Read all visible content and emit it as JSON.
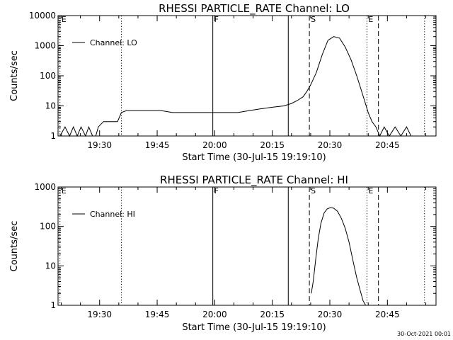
{
  "footer": {
    "timestamp": "30-Oct-2021 00:01"
  },
  "chart_data": [
    {
      "type": "line",
      "title": "RHESSI PARTICLE_RATE Channel: LO",
      "xlabel": "Start Time (30-Jul-15 19:19:10)",
      "ylabel": "Counts/sec",
      "yscale": "log",
      "ylim": [
        1,
        10000
      ],
      "xlim": [
        "19:19:10",
        "20:57:40"
      ],
      "x_ticks": [
        "19:30",
        "19:45",
        "20:00",
        "20:15",
        "20:30",
        "20:45"
      ],
      "y_ticks": [
        "1",
        "10",
        "100",
        "1000",
        "10000"
      ],
      "legend": {
        "position": "top-left",
        "entries": [
          "Channel: LO"
        ]
      },
      "markers": [
        {
          "label": "E",
          "time": "19:19:40",
          "style": "dotted"
        },
        {
          "label": "",
          "time": "19:35:40",
          "style": "dotted"
        },
        {
          "label": "F",
          "time": "19:59:30",
          "style": "solid"
        },
        {
          "label": "",
          "time": "20:19:10",
          "style": "solid"
        },
        {
          "label": "S",
          "time": "20:24:40",
          "style": "dashed"
        },
        {
          "label": "E",
          "time": "20:39:40",
          "style": "dotted"
        },
        {
          "label": "",
          "time": "20:42:40",
          "style": "dashed"
        },
        {
          "label": "",
          "time": "20:54:40",
          "style": "dotted"
        }
      ],
      "series": [
        {
          "x": [
            "19:19:40",
            "19:21:00",
            "19:22:10",
            "19:23:10",
            "19:24:10",
            "19:25:10",
            "19:26:20",
            "19:27:10",
            "19:28:10",
            "19:29:00",
            "19:29:40",
            "19:31:00",
            "19:33:00",
            "19:34:40",
            "19:35:40",
            "19:37:00",
            "19:40:00",
            "19:43:00",
            "19:46:00",
            "19:49:00",
            "19:52:00",
            "19:55:00",
            "19:58:00",
            "20:00:00",
            "20:03:00",
            "20:06:00",
            "20:09:00",
            "20:12:00",
            "20:15:00",
            "20:18:00",
            "20:20:00",
            "20:21:30",
            "20:23:00",
            "20:24:00",
            "20:25:00",
            "20:26:30",
            "20:28:00",
            "20:29:30",
            "20:31:00",
            "20:32:30",
            "20:34:00",
            "20:35:30",
            "20:37:00",
            "20:38:30",
            "20:40:00",
            "20:41:00",
            "20:42:00",
            "20:43:00",
            "20:44:10",
            "20:45:30",
            "20:47:00",
            "20:48:30",
            "20:50:00",
            "20:51:10"
          ],
          "y": [
            1,
            2,
            1,
            2,
            1,
            2,
            1,
            2,
            1,
            1,
            2,
            3,
            3,
            3,
            6,
            7,
            7,
            7,
            7,
            6,
            6,
            6,
            6,
            6,
            6,
            6,
            7,
            8,
            9,
            10,
            12,
            15,
            20,
            30,
            50,
            130,
            500,
            1500,
            2000,
            1800,
            900,
            350,
            100,
            25,
            6,
            3,
            2,
            1,
            2,
            1,
            2,
            1,
            2,
            1
          ]
        }
      ]
    },
    {
      "type": "line",
      "title": "RHESSI PARTICLE_RATE Channel: HI",
      "xlabel": "Start Time (30-Jul-15 19:19:10)",
      "ylabel": "Counts/sec",
      "yscale": "log",
      "ylim": [
        1,
        1000
      ],
      "xlim": [
        "19:19:10",
        "20:57:40"
      ],
      "x_ticks": [
        "19:30",
        "19:45",
        "20:00",
        "20:15",
        "20:30",
        "20:45"
      ],
      "y_ticks": [
        "1",
        "10",
        "100",
        "1000"
      ],
      "legend": {
        "position": "top-left",
        "entries": [
          "Channel: HI"
        ]
      },
      "markers": [
        {
          "label": "E",
          "time": "19:19:40",
          "style": "dotted"
        },
        {
          "label": "",
          "time": "19:35:40",
          "style": "dotted"
        },
        {
          "label": "F",
          "time": "19:59:30",
          "style": "solid"
        },
        {
          "label": "",
          "time": "20:19:10",
          "style": "solid"
        },
        {
          "label": "S",
          "time": "20:24:40",
          "style": "dashed"
        },
        {
          "label": "E",
          "time": "20:39:40",
          "style": "dotted"
        },
        {
          "label": "",
          "time": "20:42:40",
          "style": "dashed"
        },
        {
          "label": "",
          "time": "20:54:40",
          "style": "dotted"
        }
      ],
      "series": [
        {
          "x": [
            "20:25:10",
            "20:25:40",
            "20:26:20",
            "20:27:00",
            "20:27:40",
            "20:28:30",
            "20:29:20",
            "20:30:10",
            "20:31:00",
            "20:32:00",
            "20:33:00",
            "20:34:00",
            "20:35:00",
            "20:36:00",
            "20:37:00",
            "20:38:00",
            "20:38:40",
            "20:39:20"
          ],
          "y": [
            2,
            4,
            15,
            50,
            120,
            220,
            280,
            300,
            290,
            240,
            160,
            90,
            40,
            14,
            5,
            2.2,
            1.3,
            1
          ]
        }
      ]
    }
  ]
}
